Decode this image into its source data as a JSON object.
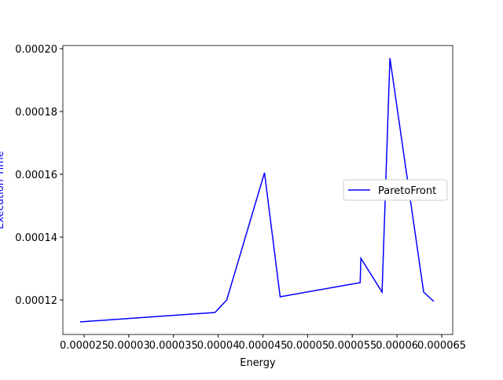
{
  "chart_data": {
    "type": "line",
    "xlabel": "Energy",
    "ylabel": "Execution Time",
    "x": [
      2.456e-05,
      3.965e-05,
      4.096e-05,
      4.518e-05,
      4.693e-05,
      5.588e-05,
      5.596e-05,
      5.833e-05,
      5.921e-05,
      6.298e-05,
      6.412e-05
    ],
    "series": [
      {
        "name": "ParetoFront",
        "color": "#0000ff",
        "values": [
          0.000113,
          0.000116,
          0.00012,
          0.0001605,
          0.000121,
          0.0001255,
          0.00013325,
          0.0001225,
          0.000197,
          0.0001225,
          0.0001195
        ]
      }
    ],
    "xlim": [
      2.263e-05,
      6.623e-05
    ],
    "xticks": [
      2.5e-05,
      3e-05,
      3.5e-05,
      4e-05,
      4.5e-05,
      5e-05,
      5.5e-05,
      6e-05,
      6.5e-05
    ],
    "ylim": [
      0.000109,
      0.000201
    ],
    "yticks": [
      0.00012,
      0.00014,
      0.00016,
      0.00018,
      {
        "value": 0.0002,
        "label": "0.00020"
      }
    ],
    "legend": "center right"
  }
}
